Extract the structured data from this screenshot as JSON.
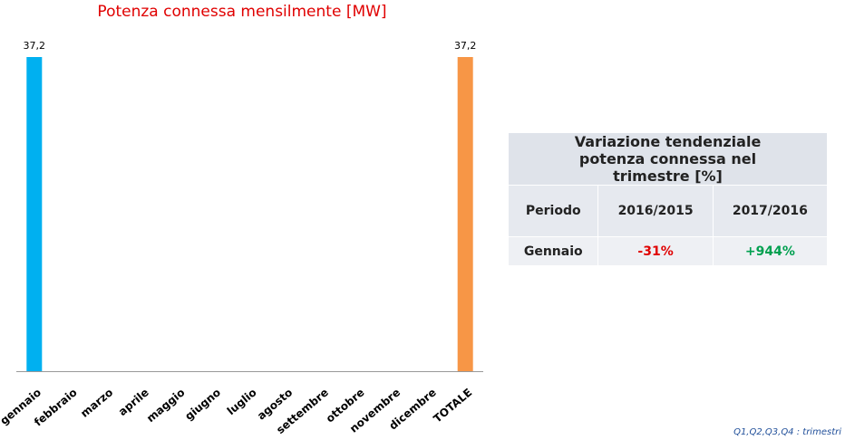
{
  "chart_data": {
    "type": "bar",
    "title": "Potenza connessa mensilmente [MW]",
    "categories": [
      "gennaio",
      "febbraio",
      "marzo",
      "aprile",
      "maggio",
      "giugno",
      "luglio",
      "agosto",
      "settembre",
      "ottobre",
      "novembre",
      "dicembre",
      "TOTALE"
    ],
    "values": [
      37.2,
      null,
      null,
      null,
      null,
      null,
      null,
      null,
      null,
      null,
      null,
      null,
      37.2
    ],
    "value_labels": [
      "37,2",
      null,
      null,
      null,
      null,
      null,
      null,
      null,
      null,
      null,
      null,
      null,
      "37,2"
    ],
    "colors": [
      "#00b0f0",
      null,
      null,
      null,
      null,
      null,
      null,
      null,
      null,
      null,
      null,
      null,
      "#f79646"
    ],
    "ylim": [
      0,
      37.2
    ]
  },
  "table": {
    "title": "Variazione tendenziale potenza connessa nel trimestre [%]",
    "header": [
      "Periodo",
      "2016/2015",
      "2017/2016"
    ],
    "rows": [
      [
        "Gennaio",
        "-31%",
        "+944%"
      ]
    ]
  },
  "footnote": "Q1,Q2,Q3,Q4 : trimestri"
}
